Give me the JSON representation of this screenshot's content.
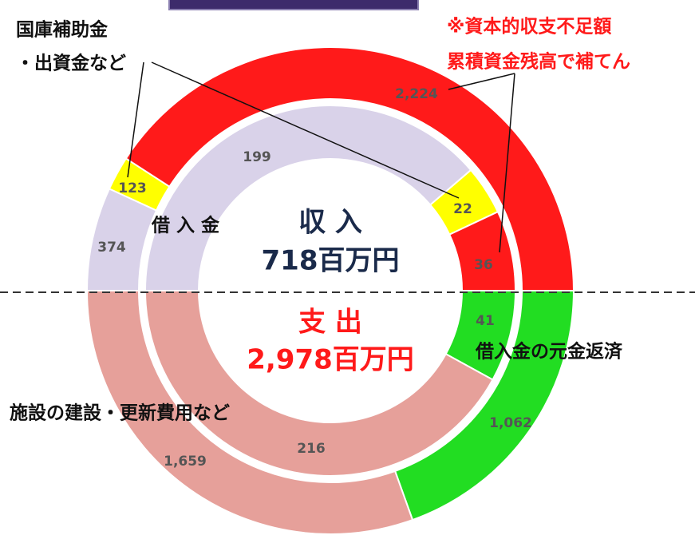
{
  "chart_data": {
    "type": "donut",
    "series": [
      {
        "name": "収 入",
        "total_label": "718百万円",
        "outer": {
          "values": [
            374,
            123,
            2224
          ],
          "value_labels": [
            "374",
            "123",
            "2,224"
          ],
          "colors": [
            "#d9d2e9",
            "#ffff00",
            "#ff1a1a"
          ]
        },
        "inner": {
          "values": [
            199,
            22,
            36
          ],
          "value_labels": [
            "199",
            "22",
            "36"
          ],
          "colors": [
            "#d9d2e9",
            "#ffff00",
            "#ff1a1a"
          ]
        }
      },
      {
        "name": "支 出",
        "total_label": "2,978百万円",
        "outer": {
          "values": [
            1062,
            1659
          ],
          "value_labels": [
            "1,062",
            "1,659"
          ],
          "colors": [
            "#22dd22",
            "#e6a09a"
          ]
        },
        "inner": {
          "values": [
            41,
            216
          ],
          "value_labels": [
            "41",
            "216"
          ],
          "colors": [
            "#22dd22",
            "#e6a09a"
          ]
        }
      }
    ],
    "annotations": [
      "国庫補助金",
      "・出資金など",
      "※資本的収支不足額",
      "累積資金残高で補てん",
      "借 入 金",
      "借入金の元金返済",
      "施設の建設・更新費用など"
    ]
  }
}
